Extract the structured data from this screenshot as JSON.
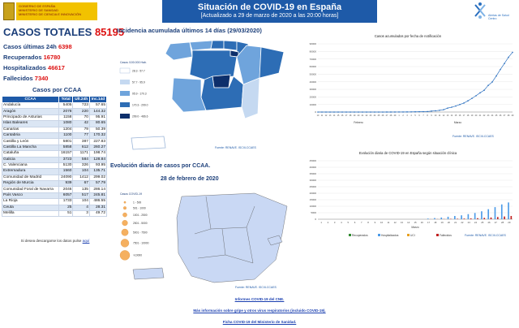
{
  "header": {
    "title": "Situación de COVID-19 en España",
    "subtitle": "[Actualizado a 29 de marzo de 2020 a las 20:00 horas]",
    "gov_line1": "GOBIERNO DE ESPAÑA",
    "gov_line2": "MINISTERIO DE SANIDAD",
    "gov_line3": "MINISTERIO DE CIENCIA E INNOVACIÓN",
    "ccaes_label": "Alertas de Salud Centro"
  },
  "summary": {
    "totales_label": "CASOS TOTALES",
    "totales_value": "85195",
    "ultimas_label": "Casos últimas 24h",
    "ultimas_value": "6398",
    "recuperados_label": "Recuperados",
    "recuperados_value": "16780",
    "hospitalizados_label": "Hospitalizados",
    "hospitalizados_value": "46617",
    "fallecidos_label": "Fallecidos",
    "fallecidos_value": "7340"
  },
  "table": {
    "title": "Casos por CCAA",
    "headers": [
      "CCAA",
      "Total",
      "Ult.24h",
      "Inc.14d"
    ],
    "rows": [
      [
        "Andalucía",
        "5405",
        "723",
        "57.65"
      ],
      [
        "Aragón",
        "2078",
        "220",
        "144.32"
      ],
      [
        "Principado de Asturias",
        "1158",
        "70",
        "95.91"
      ],
      [
        "Islas Baleares",
        "1080",
        "42",
        "80.65"
      ],
      [
        "Canarias",
        "1204",
        "79",
        "50.39"
      ],
      [
        "Cantabria",
        "1100",
        "77",
        "170.32"
      ],
      [
        "Castilla y León",
        "5801",
        "387",
        "227.83"
      ],
      [
        "Castilla La Mancha",
        "5858",
        "612",
        "260.27"
      ],
      [
        "Cataluña",
        "16157",
        "1171",
        "198.74"
      ],
      [
        "Galicia",
        "3723",
        "584",
        "128.84"
      ],
      [
        "C. Valenciana",
        "5130",
        "326",
        "93.95"
      ],
      [
        "Extremadura",
        "1560",
        "104",
        "135.71"
      ],
      [
        "Comunidad de Madrid",
        "24090",
        "1412",
        "299.02"
      ],
      [
        "Región de Murcia",
        "939",
        "67",
        "57.79"
      ],
      [
        "Comunidad Foral de Navarra",
        "2046",
        "135",
        "286.14"
      ],
      [
        "País Vasco",
        "6057",
        "517",
        "245.81"
      ],
      [
        "La Rioja",
        "1733",
        "104",
        "486.55"
      ],
      [
        "Ceuta",
        "25",
        "4",
        "28.31"
      ],
      [
        "Melilla",
        "51",
        "3",
        "49.72"
      ]
    ],
    "note_text": "Si desea descargarse los datos pulse",
    "note_link": "aquí"
  },
  "map1": {
    "title": "Incidencia acumulada últimos 14 días (29/03/2020)",
    "legend_title": "Casos /100.000 Hab.",
    "legend": [
      "28.3 - 57.7",
      "57.7 - 95.9",
      "95.9 - 170.3",
      "170.3 - 299.0",
      "299.0 - 486.6"
    ],
    "source": "Fuente: RENAVE. ISCIII-CCAES"
  },
  "map2": {
    "title": "Evolución diaria de casos por CCAA.",
    "date": "28 de febrero de 2020",
    "legend_title": "Casos COVID-19",
    "legend": [
      "1 - 500",
      "501 - 1000",
      "1001 - 2500",
      "2501 - 5000",
      "5001 - 7500",
      "7501 - 10000",
      ">10000"
    ],
    "source": "Fuente: RENAVE. ISCIII-CCAES"
  },
  "chart_data": [
    {
      "type": "line",
      "title": "Casos acumulados por fecha de notificación",
      "x": [
        "10",
        "11",
        "12",
        "13",
        "14",
        "15",
        "16",
        "17",
        "18",
        "19",
        "20",
        "21",
        "22",
        "23",
        "24",
        "25",
        "26",
        "27",
        "28",
        "29",
        "1",
        "2",
        "3",
        "4",
        "5",
        "6",
        "7",
        "8",
        "9",
        "10",
        "11",
        "12",
        "13",
        "14",
        "15",
        "16",
        "17",
        "18",
        "19",
        "20",
        "21",
        "22",
        "23",
        "24",
        "25",
        "26",
        "27",
        "28",
        "29"
      ],
      "x_groups": [
        "Febrero",
        "Marzo"
      ],
      "values": [
        0,
        0,
        0,
        0,
        0,
        0,
        0,
        0,
        0,
        0,
        0,
        0,
        0,
        0,
        2,
        6,
        13,
        15,
        32,
        45,
        84,
        120,
        165,
        228,
        282,
        401,
        525,
        674,
        1231,
        1695,
        2277,
        3146,
        5232,
        6391,
        7988,
        9942,
        11826,
        14769,
        18077,
        21571,
        25374,
        28768,
        35136,
        39673,
        47610,
        56188,
        64059,
        72248,
        78797
      ],
      "ylim": [
        0,
        90000
      ],
      "yticks": [
        0,
        10000,
        20000,
        30000,
        40000,
        50000,
        60000,
        70000,
        80000,
        90000
      ],
      "source": "Fuente: RENAVE. ISCIII-CCAES"
    },
    {
      "type": "bar",
      "title": "Evolución diaria de COVID-19 en España según situación clínica",
      "categories": [
        "1",
        "2",
        "3",
        "4",
        "5",
        "6",
        "7",
        "8",
        "9",
        "10",
        "11",
        "12",
        "13",
        "14",
        "15",
        "16",
        "17",
        "18",
        "19",
        "20",
        "21",
        "22",
        "23",
        "24",
        "25",
        "26",
        "27",
        "28",
        "29"
      ],
      "x_group": "Marzo",
      "series": [
        {
          "name": "Recuperados",
          "color": "#2f8a2f",
          "values": [
            0,
            0,
            0,
            0,
            0,
            0,
            0,
            0,
            0,
            0,
            0,
            0,
            0,
            0,
            0,
            0,
            0,
            0,
            0,
            0,
            0,
            0,
            0,
            0,
            0,
            0,
            0,
            0,
            0
          ]
        },
        {
          "name": "Hospitalizados",
          "color": "#4c9be8",
          "values": [
            0,
            0,
            0,
            0,
            0,
            0,
            0,
            0,
            0,
            0,
            0,
            0,
            0,
            0,
            0,
            0,
            500,
            900,
            1300,
            1900,
            2500,
            3000,
            3900,
            4800,
            6100,
            7700,
            9300,
            11400,
            12900
          ]
        },
        {
          "name": "UCI",
          "color": "#e8a020",
          "values": [
            0,
            0,
            0,
            0,
            0,
            0,
            0,
            0,
            0,
            0,
            0,
            0,
            0,
            0,
            0,
            0,
            0,
            0,
            0,
            0,
            0,
            0,
            0,
            0,
            0,
            0,
            0,
            0,
            0
          ]
        },
        {
          "name": "Fallecidos",
          "color": "#c02020",
          "values": [
            0,
            0,
            0,
            0,
            0,
            0,
            0,
            0,
            0,
            0,
            0,
            0,
            0,
            0,
            0,
            0,
            50,
            100,
            150,
            250,
            350,
            480,
            600,
            800,
            1050,
            1350,
            1700,
            2100,
            2500
          ]
        }
      ],
      "ylim": [
        0,
        45000
      ],
      "yticks": [
        0,
        5000,
        10000,
        15000,
        20000,
        25000,
        30000,
        35000,
        40000,
        45000
      ],
      "legend_position": "bottom",
      "source": "Fuente: RENAVE. ISCIII-CCAES"
    }
  ],
  "footer": {
    "link1": "Informes COVID-19 del CNE.",
    "link2": "Más información sobre gripe y otros virus respiratorios (incluido COVID-19).",
    "link3": "Ficha COVID-19 del Ministerio de Sanidad."
  },
  "colors": {
    "header_bg": "#1e5aa8",
    "title_text": "#1c3f7a",
    "value_text": "#dd1111"
  }
}
